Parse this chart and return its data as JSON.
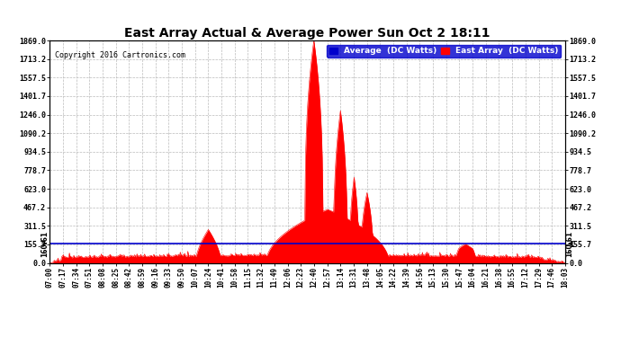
{
  "title": "East Array Actual & Average Power Sun Oct 2 18:11",
  "copyright": "Copyright 2016 Cartronics.com",
  "legend_avg": "Average  (DC Watts)",
  "legend_east": "East Array  (DC Watts)",
  "yticks": [
    0.0,
    155.7,
    311.5,
    467.2,
    623.0,
    778.7,
    934.5,
    1090.2,
    1246.0,
    1401.7,
    1557.5,
    1713.2,
    1869.0
  ],
  "ymin": 0.0,
  "ymax": 1869.0,
  "avg_line_value": 160.61,
  "avg_label": "160.61",
  "bg_color": "#ffffff",
  "plot_bg_color": "#ffffff",
  "grid_color": "#bbbbbb",
  "east_array_color": "#ff0000",
  "avg_color": "#0000cc",
  "title_color": "#000000",
  "xtick_labels": [
    "07:00",
    "07:17",
    "07:34",
    "07:51",
    "08:08",
    "08:25",
    "08:42",
    "08:59",
    "09:16",
    "09:33",
    "09:50",
    "10:07",
    "10:24",
    "10:41",
    "10:58",
    "11:15",
    "11:32",
    "11:49",
    "12:06",
    "12:23",
    "12:40",
    "12:57",
    "13:14",
    "13:31",
    "13:48",
    "14:05",
    "14:22",
    "14:39",
    "14:56",
    "15:13",
    "15:30",
    "15:47",
    "16:04",
    "16:21",
    "16:38",
    "16:55",
    "17:12",
    "17:29",
    "17:46",
    "18:03"
  ],
  "num_points": 680
}
